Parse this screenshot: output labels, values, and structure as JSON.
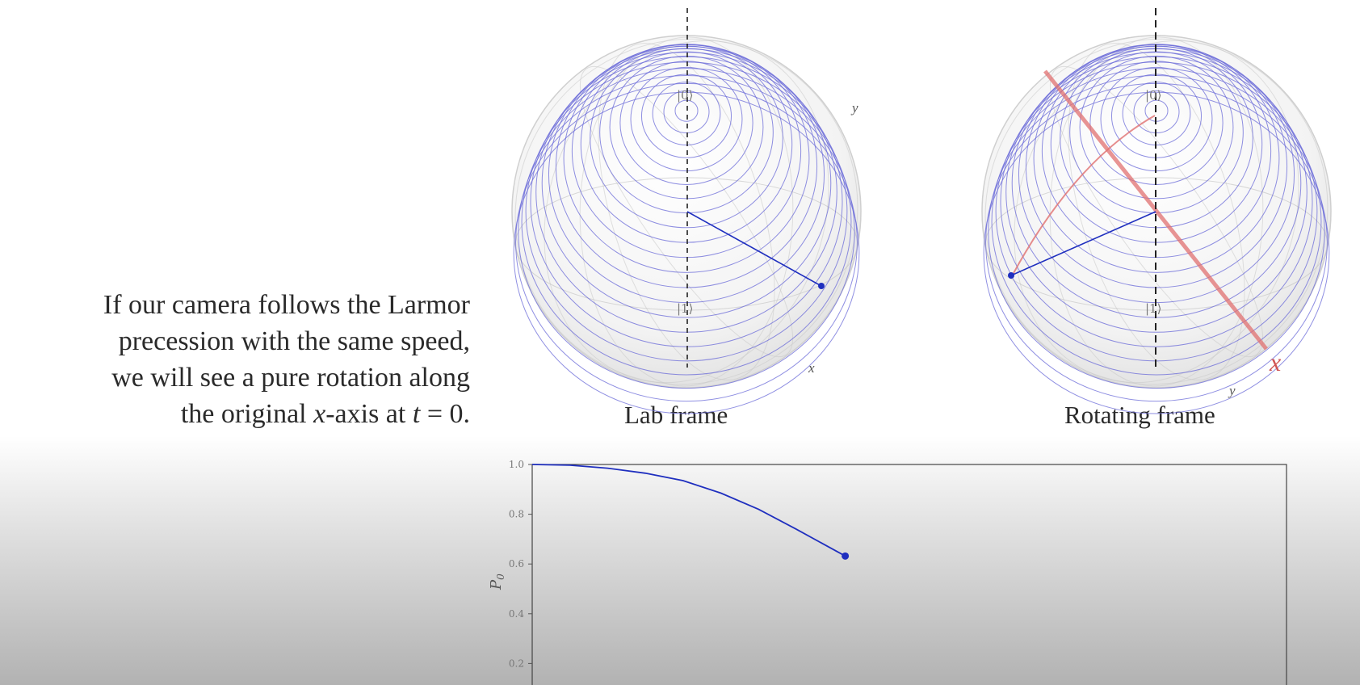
{
  "explanation": {
    "line1": "If our camera follows the Larmor",
    "line2": "precession with the same speed,",
    "line3": "we will see a pure rotation along",
    "line4_pre": "the original ",
    "line4_x": "x",
    "line4_mid": "-axis at ",
    "line4_t": "t",
    "line4_post": " = 0."
  },
  "lab_frame": {
    "caption": "Lab frame",
    "top_label": "|0⟩",
    "bottom_label": "|1⟩",
    "x_label": "x",
    "y_label": "y"
  },
  "rotating_frame": {
    "caption": "Rotating frame",
    "top_label": "|0⟩",
    "bottom_label": "|1⟩",
    "x_label": "x",
    "y_label": "y"
  },
  "colors": {
    "state": "#1f2fbf",
    "rotation_axis": "#e07070",
    "sphere_lines": "#6a6ad8"
  },
  "chart_data": {
    "type": "line",
    "ylabel": "P_0",
    "ylim": [
      0,
      1.0
    ],
    "ytick_labels": [
      "0.2",
      "0.4",
      "0.6",
      "0.8",
      "1.0"
    ],
    "ytick_values": [
      0.2,
      0.4,
      0.6,
      0.8,
      1.0
    ],
    "xlim": [
      0,
      1
    ],
    "series": [
      {
        "x": [
          0,
          0.05,
          0.1,
          0.15,
          0.2,
          0.25,
          0.3,
          0.35,
          0.415
        ],
        "values": [
          1.0,
          0.997,
          0.985,
          0.965,
          0.935,
          0.885,
          0.82,
          0.74,
          0.632
        ]
      }
    ],
    "endpoint": {
      "x": 0.415,
      "y": 0.632
    }
  }
}
